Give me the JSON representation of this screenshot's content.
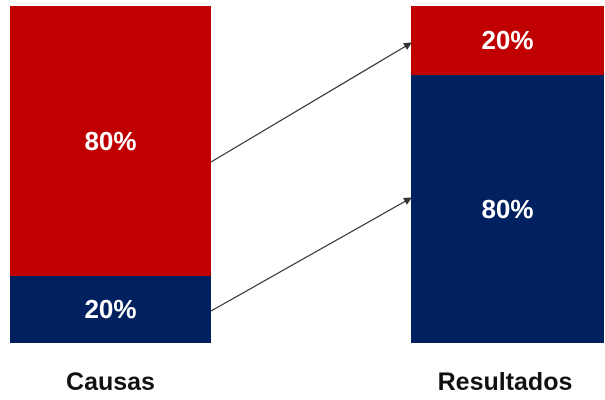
{
  "causes": {
    "label": "Causas",
    "top": {
      "text": "80%",
      "value": 80
    },
    "bottom": {
      "text": "20%",
      "value": 20
    }
  },
  "results": {
    "label": "Resultados",
    "top": {
      "text": "20%",
      "value": 20
    },
    "bottom": {
      "text": "80%",
      "value": 80
    }
  },
  "colors": {
    "red": "#c00000",
    "navy": "#002060",
    "arrow": "#333333"
  }
}
